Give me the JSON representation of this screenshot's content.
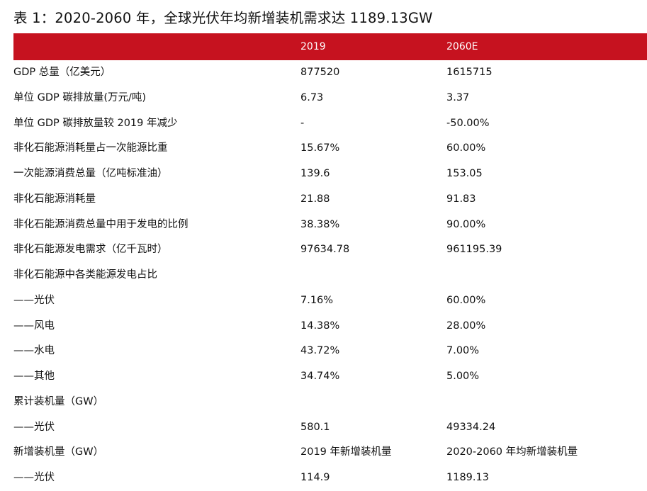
{
  "title": "表 1：2020-2060 年，全球光伏年均新增装机需求达 1189.13GW",
  "columns": [
    "2019",
    "2060E"
  ],
  "rows": [
    {
      "label": "GDP 总量（亿美元）",
      "v2019": "877520",
      "v2060": "1615715"
    },
    {
      "label": "单位 GDP 碳排放量(万元/吨)",
      "v2019": "6.73",
      "v2060": "3.37"
    },
    {
      "label": "单位 GDP 碳排放量较 2019 年减少",
      "v2019": "-",
      "v2060": "-50.00%"
    },
    {
      "label": "非化石能源消耗量占一次能源比重",
      "v2019": "15.67%",
      "v2060": "60.00%"
    },
    {
      "label": "一次能源消费总量（亿吨标准油）",
      "v2019": "139.6",
      "v2060": "153.05"
    },
    {
      "label": "非化石能源消耗量",
      "v2019": "21.88",
      "v2060": "91.83"
    },
    {
      "label": "非化石能源消费总量中用于发电的比例",
      "v2019": "38.38%",
      "v2060": "90.00%"
    },
    {
      "label": "非化石能源发电需求（亿千瓦时）",
      "v2019": "97634.78",
      "v2060": "961195.39"
    },
    {
      "label": "非化石能源中各类能源发电占比",
      "v2019": "",
      "v2060": ""
    },
    {
      "label": "——光伏",
      "v2019": "7.16%",
      "v2060": "60.00%"
    },
    {
      "label": "——风电",
      "v2019": "14.38%",
      "v2060": "28.00%"
    },
    {
      "label": "——水电",
      "v2019": "43.72%",
      "v2060": "7.00%"
    },
    {
      "label": "——其他",
      "v2019": "34.74%",
      "v2060": "5.00%"
    },
    {
      "label": "累计装机量（GW）",
      "v2019": "",
      "v2060": ""
    },
    {
      "label": "——光伏",
      "v2019": "580.1",
      "v2060": "49334.24"
    },
    {
      "label": "新增装机量（GW）",
      "v2019": "2019 年新增装机量",
      "v2060": "2020-2060 年均新增装机量"
    },
    {
      "label": "——光伏",
      "v2019": "114.9",
      "v2060": "1189.13"
    }
  ],
  "colors": {
    "header_bg": "#c6121f",
    "header_text": "#ffffff",
    "text": "#111111"
  }
}
